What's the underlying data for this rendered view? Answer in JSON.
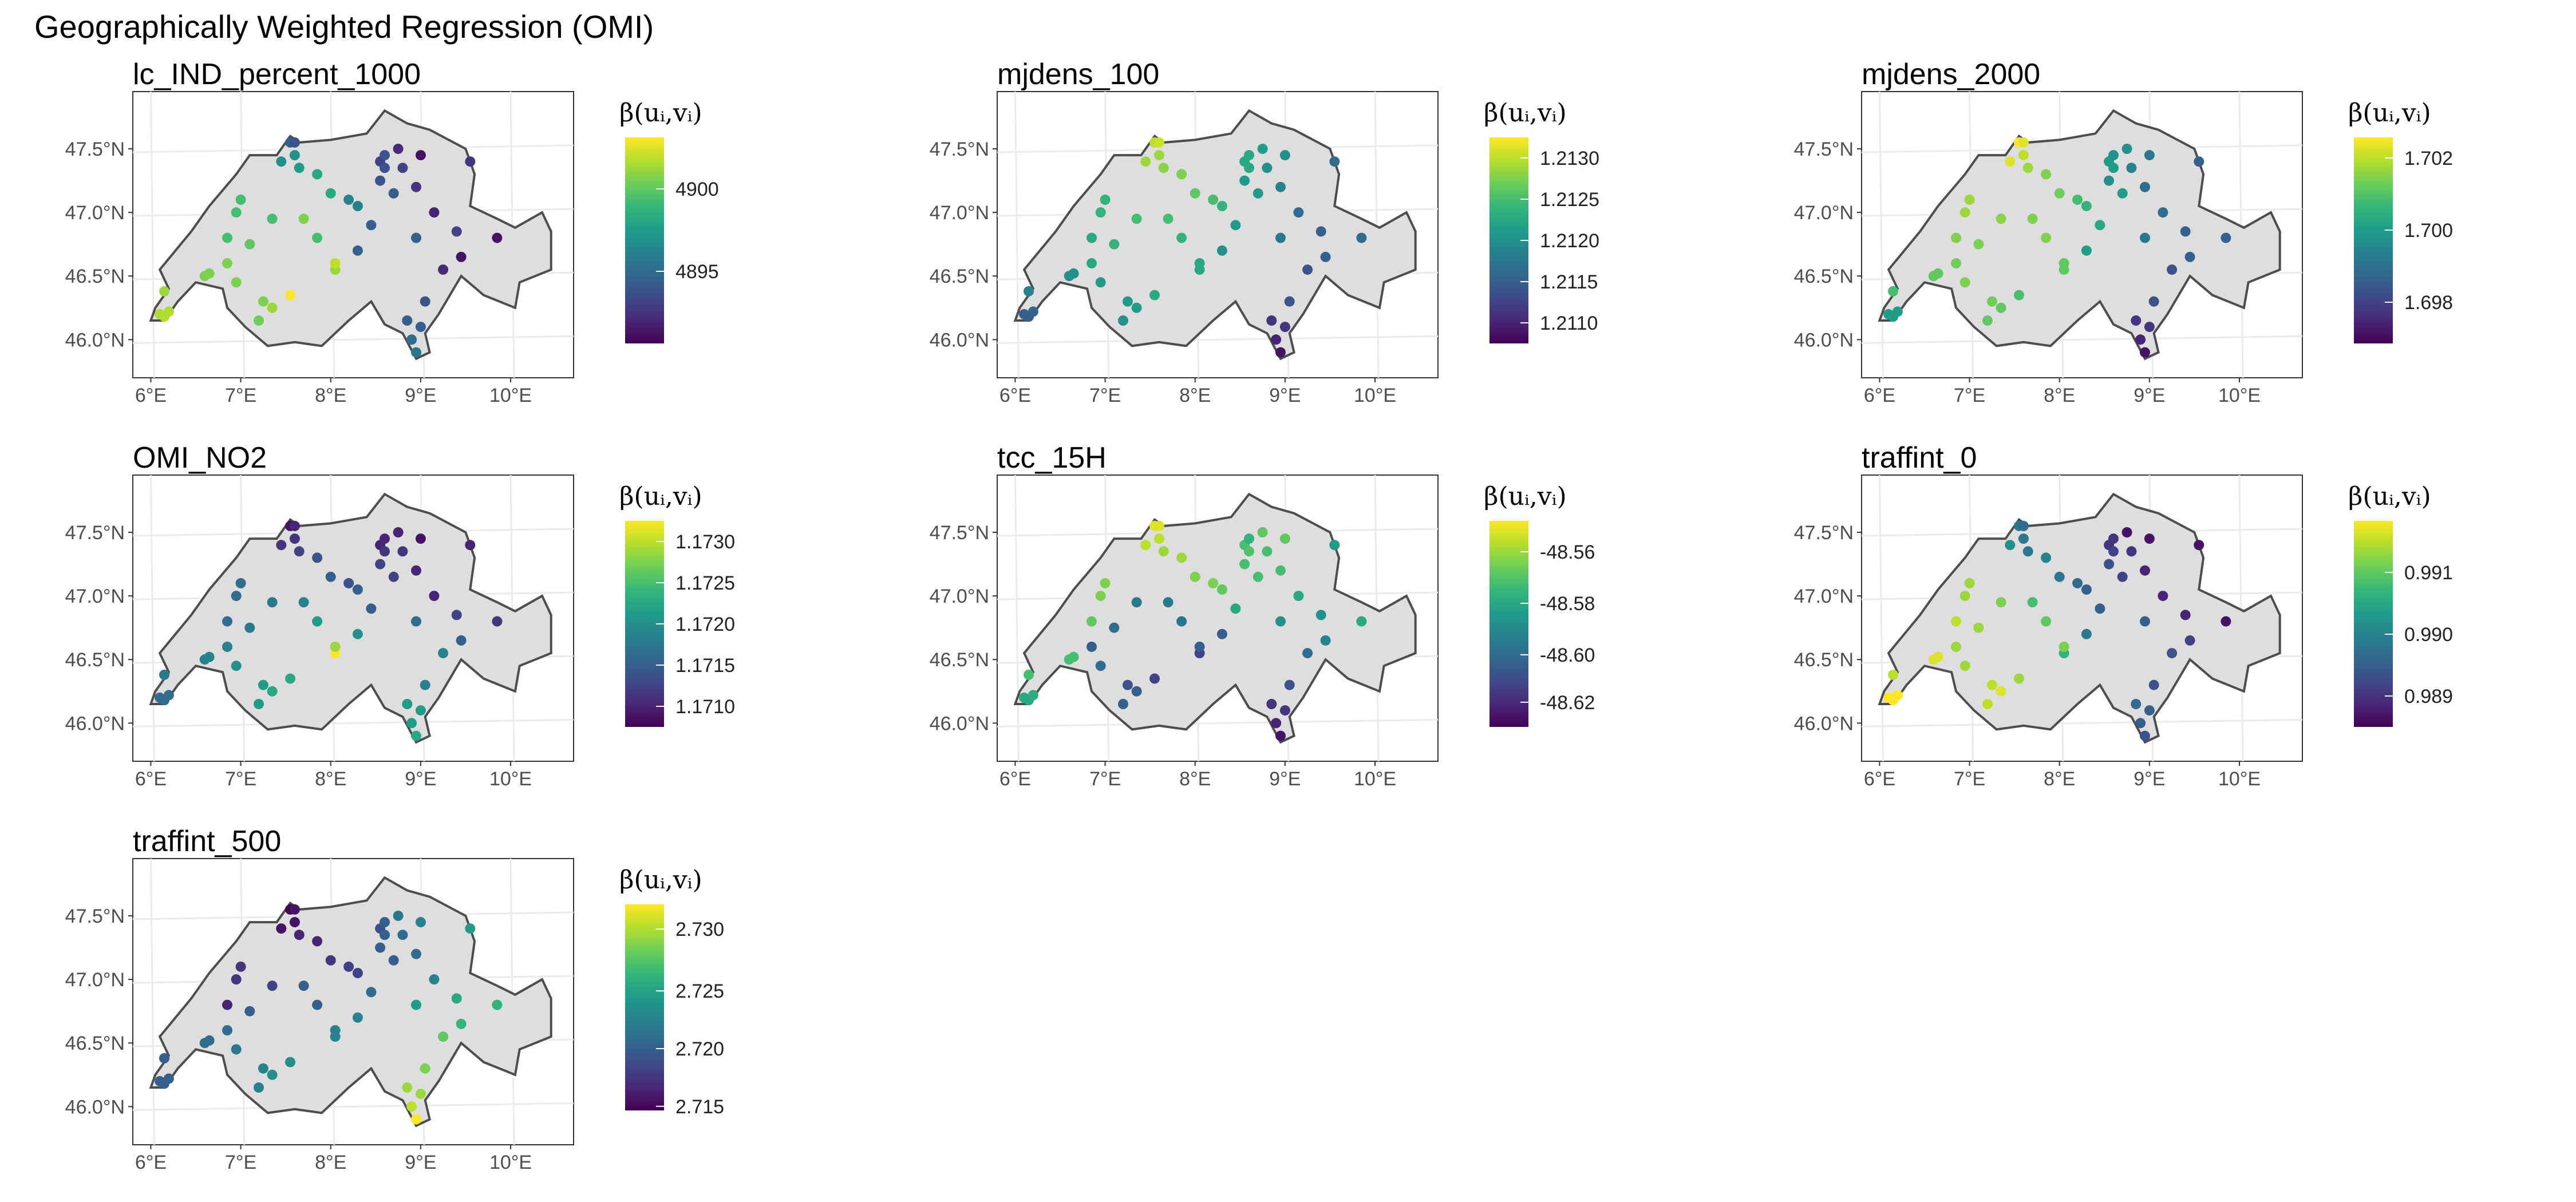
{
  "title": "Geographically Weighted Regression (OMI)",
  "legend_title": "β(uᵢ,vᵢ)",
  "colors": {
    "viridis": [
      "#440154",
      "#482878",
      "#3e4a89",
      "#31688e",
      "#26828e",
      "#1f9e89",
      "#35b779",
      "#6ece58",
      "#b5de2b",
      "#fde725"
    ],
    "land": "#dedede",
    "border": "#4d4d4d",
    "grid": "#ebebeb"
  },
  "stations": {
    "lon": [
      6.1,
      6.15,
      6.2,
      6.15,
      6.65,
      6.6,
      6.85,
      6.95,
      7.0,
      7.45,
      7.55,
      7.6,
      7.6,
      7.65,
      7.85,
      8.0,
      8.2,
      8.3,
      8.55,
      8.6,
      8.55,
      8.75,
      8.8,
      8.7,
      8.95,
      9.0,
      9.15,
      8.45,
      9.55,
      9.4,
      9.85,
      9.0,
      8.9,
      8.95,
      8.85,
      7.1,
      7.35,
      8.05,
      9.05,
      7.25,
      7.35,
      6.95,
      7.2,
      6.85,
      7.85,
      7.7,
      8.3,
      8.6,
      8.95,
      9.45,
      9.25,
      8.05,
      7.55
    ],
    "lat": [
      46.2,
      46.18,
      46.22,
      46.38,
      46.52,
      46.5,
      46.8,
      47.0,
      47.1,
      47.4,
      47.55,
      47.55,
      47.45,
      47.35,
      47.3,
      47.15,
      47.1,
      47.05,
      47.4,
      47.35,
      47.25,
      47.5,
      47.35,
      47.15,
      47.2,
      47.45,
      47.0,
      46.9,
      47.4,
      46.85,
      46.8,
      46.1,
      46.0,
      45.9,
      46.15,
      46.75,
      46.95,
      46.55,
      46.3,
      46.3,
      46.25,
      46.45,
      46.15,
      46.6,
      46.8,
      46.95,
      46.7,
      47.45,
      46.8,
      46.65,
      46.55,
      46.6,
      46.35
    ]
  },
  "chart_data": [
    {
      "type": "scatter",
      "title": "lc_IND_percent_1000",
      "legend_ticks": [
        "4900",
        "4895"
      ],
      "legend_tick_positions": [
        0.75,
        0.35
      ],
      "values": [
        0.88,
        0.88,
        0.88,
        0.85,
        0.8,
        0.8,
        0.7,
        0.7,
        0.7,
        0.5,
        0.3,
        0.25,
        0.5,
        0.55,
        0.6,
        0.6,
        0.45,
        0.45,
        0.2,
        0.25,
        0.25,
        0.12,
        0.2,
        0.3,
        0.15,
        0.05,
        0.1,
        0.3,
        0.15,
        0.2,
        0.05,
        0.3,
        0.35,
        0.4,
        0.3,
        0.75,
        0.7,
        0.85,
        0.25,
        0.8,
        0.85,
        0.8,
        0.78,
        0.8,
        0.7,
        0.8,
        0.3,
        0.25,
        0.3,
        0.05,
        0.12,
        0.9,
        1.0
      ]
    },
    {
      "type": "scatter",
      "title": "mjdens_100",
      "legend_ticks": [
        "1.2130",
        "1.2125",
        "1.2120",
        "1.2115",
        "1.2110"
      ],
      "legend_tick_positions": [
        0.9,
        0.7,
        0.5,
        0.3,
        0.1
      ],
      "values": [
        0.3,
        0.3,
        0.32,
        0.45,
        0.5,
        0.5,
        0.6,
        0.65,
        0.65,
        0.85,
        0.9,
        0.92,
        0.85,
        0.82,
        0.8,
        0.75,
        0.7,
        0.65,
        0.6,
        0.6,
        0.55,
        0.55,
        0.5,
        0.55,
        0.45,
        0.5,
        0.35,
        0.55,
        0.35,
        0.3,
        0.35,
        0.15,
        0.1,
        0.05,
        0.15,
        0.65,
        0.7,
        0.6,
        0.25,
        0.55,
        0.55,
        0.55,
        0.5,
        0.6,
        0.65,
        0.7,
        0.5,
        0.6,
        0.4,
        0.3,
        0.25,
        0.6,
        0.6
      ]
    },
    {
      "type": "scatter",
      "title": "mjdens_2000",
      "legend_ticks": [
        "1.702",
        "1.700",
        "1.698"
      ],
      "legend_tick_positions": [
        0.9,
        0.55,
        0.2
      ],
      "values": [
        0.55,
        0.55,
        0.55,
        0.7,
        0.75,
        0.75,
        0.8,
        0.85,
        0.85,
        0.95,
        1.0,
        0.95,
        0.9,
        0.85,
        0.8,
        0.78,
        0.7,
        0.65,
        0.55,
        0.55,
        0.5,
        0.5,
        0.45,
        0.55,
        0.35,
        0.4,
        0.35,
        0.6,
        0.3,
        0.3,
        0.3,
        0.15,
        0.1,
        0.05,
        0.15,
        0.8,
        0.82,
        0.75,
        0.25,
        0.78,
        0.75,
        0.8,
        0.75,
        0.78,
        0.8,
        0.8,
        0.55,
        0.5,
        0.4,
        0.3,
        0.25,
        0.75,
        0.7
      ]
    },
    {
      "type": "scatter",
      "title": "OMI_NO2",
      "legend_ticks": [
        "1.1730",
        "1.1725",
        "1.1720",
        "1.1715",
        "1.1710"
      ],
      "legend_tick_positions": [
        0.9,
        0.7,
        0.5,
        0.3,
        0.1
      ],
      "values": [
        0.35,
        0.35,
        0.35,
        0.4,
        0.45,
        0.45,
        0.35,
        0.35,
        0.35,
        0.15,
        0.05,
        0.1,
        0.15,
        0.2,
        0.25,
        0.3,
        0.25,
        0.3,
        0.1,
        0.15,
        0.2,
        0.1,
        0.15,
        0.2,
        0.1,
        0.05,
        0.1,
        0.3,
        0.1,
        0.2,
        0.15,
        0.55,
        0.55,
        0.6,
        0.55,
        0.4,
        0.4,
        1.0,
        0.45,
        0.55,
        0.6,
        0.5,
        0.55,
        0.45,
        0.55,
        0.45,
        0.5,
        0.1,
        0.35,
        0.3,
        0.45,
        0.85,
        0.6
      ]
    },
    {
      "type": "scatter",
      "title": "tcc_15H",
      "legend_ticks": [
        "-48.56",
        "-48.58",
        "-48.60",
        "-48.62"
      ],
      "legend_tick_positions": [
        0.85,
        0.6,
        0.35,
        0.12
      ],
      "values": [
        0.6,
        0.6,
        0.62,
        0.7,
        0.7,
        0.7,
        0.75,
        0.8,
        0.8,
        0.9,
        0.95,
        0.95,
        0.9,
        0.85,
        0.85,
        0.8,
        0.8,
        0.75,
        0.7,
        0.72,
        0.7,
        0.75,
        0.7,
        0.7,
        0.7,
        0.75,
        0.6,
        0.6,
        0.55,
        0.5,
        0.6,
        0.15,
        0.1,
        0.05,
        0.15,
        0.35,
        0.4,
        0.2,
        0.25,
        0.25,
        0.3,
        0.35,
        0.3,
        0.3,
        0.4,
        0.4,
        0.3,
        0.65,
        0.5,
        0.45,
        0.35,
        0.3,
        0.2
      ]
    },
    {
      "type": "scatter",
      "title": "traffint_0",
      "legend_ticks": [
        "0.991",
        "0.990",
        "0.989"
      ],
      "legend_tick_positions": [
        0.75,
        0.45,
        0.15
      ],
      "values": [
        1.0,
        1.0,
        1.0,
        0.9,
        0.95,
        0.95,
        0.9,
        0.85,
        0.85,
        0.5,
        0.4,
        0.35,
        0.4,
        0.4,
        0.45,
        0.4,
        0.35,
        0.3,
        0.15,
        0.2,
        0.25,
        0.05,
        0.15,
        0.2,
        0.1,
        0.05,
        0.1,
        0.3,
        0.05,
        0.1,
        0.05,
        0.3,
        0.3,
        0.25,
        0.35,
        0.85,
        0.8,
        0.65,
        0.25,
        0.9,
        0.95,
        0.85,
        0.9,
        0.85,
        0.75,
        0.7,
        0.4,
        0.15,
        0.3,
        0.2,
        0.25,
        0.8,
        0.85
      ]
    },
    {
      "type": "scatter",
      "title": "traffint_500",
      "legend_ticks": [
        "2.730",
        "2.725",
        "2.720",
        "2.715"
      ],
      "legend_tick_positions": [
        0.88,
        0.58,
        0.3,
        0.02
      ],
      "values": [
        0.3,
        0.3,
        0.3,
        0.3,
        0.35,
        0.35,
        0.1,
        0.15,
        0.15,
        0.05,
        0.0,
        0.05,
        0.05,
        0.1,
        0.1,
        0.15,
        0.2,
        0.2,
        0.25,
        0.3,
        0.3,
        0.4,
        0.35,
        0.3,
        0.35,
        0.45,
        0.45,
        0.35,
        0.55,
        0.6,
        0.65,
        0.85,
        0.9,
        1.0,
        0.85,
        0.3,
        0.2,
        0.45,
        0.8,
        0.45,
        0.5,
        0.4,
        0.45,
        0.35,
        0.3,
        0.3,
        0.45,
        0.3,
        0.55,
        0.65,
        0.75,
        0.45,
        0.5
      ]
    }
  ],
  "axes": {
    "x_ticks": [
      "6°E",
      "7°E",
      "8°E",
      "9°E",
      "10°E"
    ],
    "y_ticks": [
      "47.5°N",
      "47.0°N",
      "46.5°N",
      "46.0°N"
    ]
  }
}
